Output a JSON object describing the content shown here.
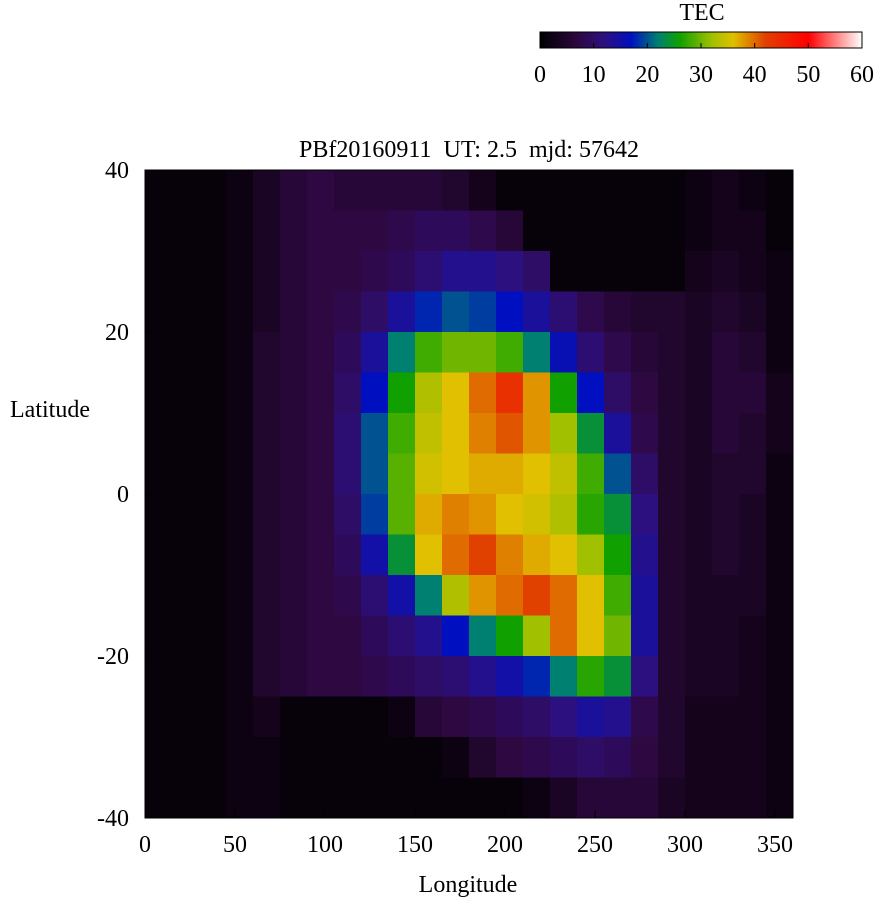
{
  "chart_data": {
    "type": "heatmap",
    "title": "PBf20160911  UT: 2.5  mjd: 57642",
    "x_label": "Longitude",
    "y_label": "Latitude",
    "colorbar_label": "TEC",
    "x": [
      7.5,
      22.5,
      37.5,
      52.5,
      67.5,
      82.5,
      97.5,
      112.5,
      127.5,
      142.5,
      157.5,
      172.5,
      187.5,
      202.5,
      217.5,
      232.5,
      247.5,
      262.5,
      277.5,
      292.5,
      307.5,
      322.5,
      337.5,
      352.5
    ],
    "y": [
      37.5,
      32.5,
      27.5,
      22.5,
      17.5,
      12.5,
      7.5,
      2.5,
      -2.5,
      -7.5,
      -12.5,
      -17.5,
      -22.5,
      -27.5,
      -32.5,
      -37.5
    ],
    "z": [
      [
        1,
        1,
        1,
        2,
        4,
        6,
        7,
        6,
        6,
        6,
        6,
        5,
        3,
        1,
        1,
        1,
        1,
        1,
        1,
        1,
        2,
        3,
        2,
        1
      ],
      [
        1,
        1,
        1,
        2,
        4,
        6,
        7,
        7,
        7,
        8,
        9,
        9,
        8,
        6,
        1,
        1,
        1,
        1,
        1,
        1,
        2,
        3,
        3,
        1
      ],
      [
        1,
        1,
        1,
        2,
        4,
        6,
        7,
        7,
        8,
        9,
        11,
        13,
        13,
        12,
        10,
        1,
        1,
        1,
        1,
        1,
        3,
        4,
        3,
        2
      ],
      [
        1,
        1,
        1,
        2,
        4,
        6,
        7,
        8,
        10,
        14,
        18,
        20,
        19,
        17,
        14,
        11,
        8,
        6,
        5,
        5,
        4,
        5,
        4,
        2
      ],
      [
        1,
        1,
        1,
        2,
        5,
        6,
        7,
        9,
        14,
        22,
        28,
        30,
        30,
        28,
        22,
        16,
        11,
        8,
        6,
        5,
        4,
        6,
        5,
        2
      ],
      [
        1,
        1,
        1,
        2,
        5,
        6,
        7,
        10,
        17,
        26,
        33,
        36,
        40,
        44,
        38,
        26,
        17,
        10,
        7,
        5,
        4,
        6,
        6,
        3
      ],
      [
        1,
        1,
        1,
        2,
        5,
        6,
        7,
        11,
        20,
        28,
        34,
        36,
        39,
        41,
        38,
        32,
        24,
        14,
        8,
        5,
        4,
        6,
        5,
        3
      ],
      [
        1,
        1,
        1,
        2,
        5,
        6,
        7,
        11,
        20,
        29,
        35,
        36,
        37,
        37,
        36,
        34,
        28,
        20,
        10,
        5,
        4,
        5,
        5,
        2
      ],
      [
        1,
        1,
        1,
        2,
        5,
        6,
        7,
        10,
        19,
        29,
        37,
        39,
        38,
        36,
        35,
        33,
        27,
        24,
        12,
        5,
        4,
        5,
        4,
        2
      ],
      [
        1,
        1,
        1,
        2,
        5,
        6,
        7,
        9,
        15,
        24,
        36,
        40,
        42,
        39,
        37,
        36,
        32,
        26,
        13,
        5,
        4,
        5,
        4,
        2
      ],
      [
        1,
        1,
        1,
        2,
        5,
        6,
        7,
        8,
        11,
        15,
        22,
        33,
        38,
        40,
        42,
        40,
        36,
        28,
        14,
        5,
        4,
        4,
        4,
        2
      ],
      [
        1,
        1,
        1,
        2,
        5,
        6,
        7,
        7,
        9,
        11,
        13,
        17,
        22,
        26,
        32,
        40,
        36,
        30,
        14,
        5,
        4,
        4,
        3,
        2
      ],
      [
        1,
        1,
        1,
        2,
        5,
        6,
        7,
        7,
        8,
        9,
        10,
        11,
        13,
        15,
        18,
        22,
        27,
        24,
        12,
        5,
        4,
        4,
        3,
        2
      ],
      [
        1,
        1,
        1,
        2,
        3,
        1,
        1,
        1,
        1,
        2,
        6,
        7,
        8,
        9,
        10,
        12,
        14,
        13,
        8,
        5,
        3,
        3,
        3,
        2
      ],
      [
        1,
        1,
        1,
        2,
        2,
        1,
        1,
        1,
        1,
        1,
        1,
        2,
        5,
        7,
        8,
        9,
        10,
        9,
        7,
        5,
        3,
        3,
        3,
        2
      ],
      [
        1,
        1,
        1,
        2,
        2,
        1,
        1,
        1,
        1,
        1,
        1,
        1,
        1,
        1,
        2,
        4,
        6,
        6,
        6,
        4,
        3,
        3,
        3,
        2
      ]
    ],
    "xlim": [
      0,
      360
    ],
    "ylim": [
      -40,
      40
    ],
    "xticks": [
      0,
      50,
      100,
      150,
      200,
      250,
      300,
      350
    ],
    "yticks": [
      -40,
      -20,
      0,
      20,
      40
    ],
    "clim": [
      0,
      60
    ],
    "cticks": [
      0,
      10,
      20,
      30,
      40,
      50,
      60
    ],
    "colormap": [
      {
        "value": 0,
        "color": "#000000"
      },
      {
        "value": 7,
        "color": "#2e0840"
      },
      {
        "value": 12,
        "color": "#2c1080"
      },
      {
        "value": 17,
        "color": "#0010c0"
      },
      {
        "value": 22,
        "color": "#008070"
      },
      {
        "value": 26,
        "color": "#10a000"
      },
      {
        "value": 32,
        "color": "#a0c000"
      },
      {
        "value": 36,
        "color": "#e0c000"
      },
      {
        "value": 42,
        "color": "#e04000"
      },
      {
        "value": 50,
        "color": "#ff0000"
      },
      {
        "value": 60,
        "color": "#ffffff"
      }
    ]
  }
}
